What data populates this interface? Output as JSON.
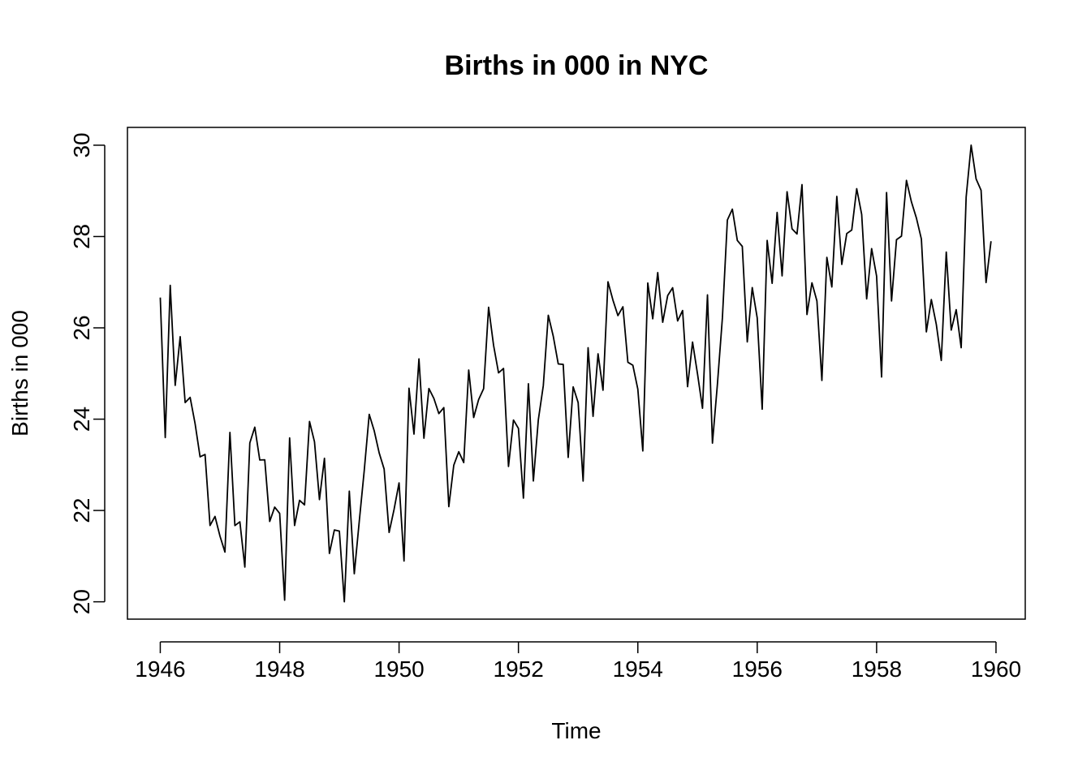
{
  "chart_data": {
    "type": "line",
    "title": "Births in 000 in NYC",
    "xlabel": "Time",
    "ylabel": "Births in 000",
    "xlim": [
      1945.45,
      1960.49
    ],
    "ylim": [
      19.62,
      30.39
    ],
    "x_ticks": [
      {
        "value": 1946,
        "label": "1946"
      },
      {
        "value": 1948,
        "label": "1948"
      },
      {
        "value": 1950,
        "label": "1950"
      },
      {
        "value": 1952,
        "label": "1952"
      },
      {
        "value": 1954,
        "label": "1954"
      },
      {
        "value": 1956,
        "label": "1956"
      },
      {
        "value": 1958,
        "label": "1958"
      },
      {
        "value": 1960,
        "label": "1960"
      }
    ],
    "y_ticks": [
      {
        "value": 20,
        "label": "20"
      },
      {
        "value": 22,
        "label": "22"
      },
      {
        "value": 24,
        "label": "24"
      },
      {
        "value": 26,
        "label": "26"
      },
      {
        "value": 28,
        "label": "28"
      },
      {
        "value": 30,
        "label": "30"
      }
    ],
    "grid": false,
    "series": [
      {
        "color": "#000000",
        "start": 1946,
        "frequency": 12,
        "values": [
          26.663,
          23.598,
          26.931,
          24.74,
          25.806,
          24.364,
          24.477,
          23.901,
          23.175,
          23.227,
          21.672,
          21.87,
          21.439,
          21.089,
          23.709,
          21.669,
          21.752,
          20.761,
          23.479,
          23.824,
          23.105,
          23.11,
          21.759,
          22.073,
          21.937,
          20.035,
          23.59,
          21.672,
          22.222,
          22.123,
          23.95,
          23.504,
          22.238,
          23.142,
          21.059,
          21.573,
          21.548,
          20.0,
          22.424,
          20.615,
          21.761,
          22.874,
          24.104,
          23.748,
          23.262,
          22.907,
          21.519,
          22.025,
          22.604,
          20.894,
          24.677,
          23.673,
          25.32,
          23.583,
          24.671,
          24.454,
          24.122,
          24.252,
          22.084,
          22.991,
          23.287,
          23.049,
          25.076,
          24.037,
          24.43,
          24.667,
          26.451,
          25.618,
          25.014,
          25.11,
          22.964,
          23.981,
          23.798,
          22.27,
          24.775,
          22.646,
          23.988,
          24.737,
          26.276,
          25.816,
          25.21,
          25.199,
          23.162,
          24.707,
          24.364,
          22.644,
          25.565,
          24.062,
          25.431,
          24.635,
          27.009,
          26.606,
          26.268,
          26.462,
          25.246,
          25.18,
          24.657,
          23.304,
          26.982,
          26.199,
          27.21,
          26.122,
          26.706,
          26.878,
          26.152,
          26.379,
          24.712,
          25.688,
          24.99,
          24.239,
          26.721,
          23.475,
          24.767,
          26.219,
          28.361,
          28.599,
          27.914,
          27.784,
          25.693,
          26.881,
          26.217,
          24.218,
          27.914,
          26.975,
          28.527,
          27.139,
          28.982,
          28.169,
          28.056,
          29.136,
          26.291,
          26.987,
          26.589,
          24.848,
          27.543,
          26.896,
          28.878,
          27.39,
          28.065,
          28.141,
          29.048,
          28.484,
          26.634,
          27.735,
          27.132,
          24.924,
          28.963,
          26.589,
          27.931,
          28.009,
          29.229,
          28.759,
          28.405,
          27.945,
          25.912,
          26.619,
          26.076,
          25.286,
          27.66,
          25.951,
          26.398,
          25.565,
          28.865,
          30.0,
          29.261,
          29.012,
          26.992,
          27.897
        ]
      }
    ]
  }
}
